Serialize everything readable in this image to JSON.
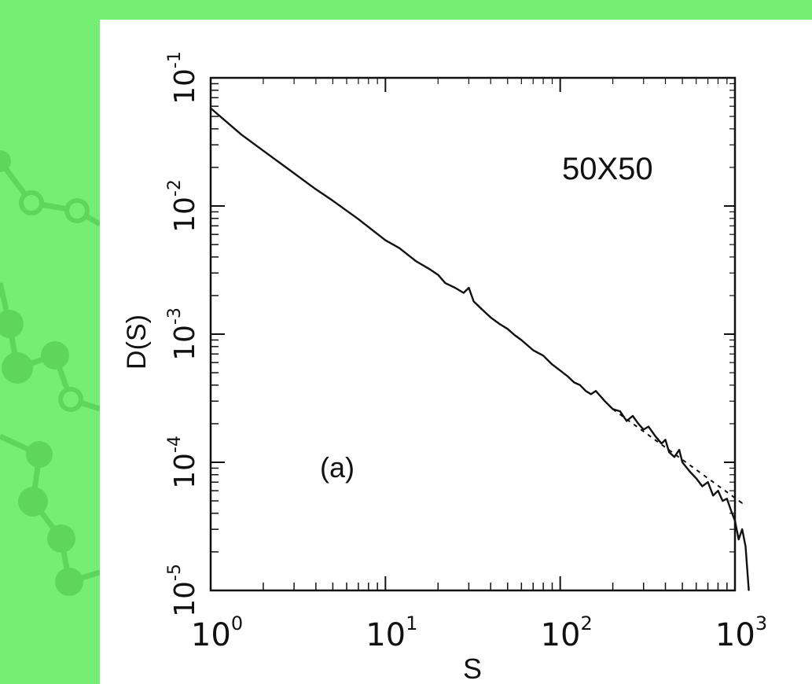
{
  "theme": {
    "background": "#74ee74",
    "molecule_fill": "#5ed65e",
    "panel": "#ffffff",
    "ink": "#111111"
  },
  "chart_data": {
    "type": "line",
    "title": "",
    "xlabel": "S",
    "ylabel": "D(S)",
    "xscale": "log",
    "yscale": "log",
    "xlim": [
      1,
      1000
    ],
    "ylim": [
      1e-05,
      0.1
    ],
    "x_ticks": [
      {
        "base": "10",
        "exp": "0"
      },
      {
        "base": "10",
        "exp": "1"
      },
      {
        "base": "10",
        "exp": "2"
      },
      {
        "base": "10",
        "exp": "3"
      }
    ],
    "y_ticks": [
      {
        "base": "10",
        "exp": "-5"
      },
      {
        "base": "10",
        "exp": "-4"
      },
      {
        "base": "10",
        "exp": "-3"
      },
      {
        "base": "10",
        "exp": "-2"
      },
      {
        "base": "10",
        "exp": "-1"
      }
    ],
    "grid": false,
    "annotations": [
      "50X50",
      "(a)"
    ],
    "series": [
      {
        "style": "solid",
        "x": [
          1,
          1.5,
          2,
          3,
          4,
          5,
          7,
          10,
          12,
          15,
          18,
          20,
          22,
          25,
          28,
          30,
          32,
          35,
          40,
          45,
          50,
          55,
          60,
          70,
          80,
          90,
          100,
          110,
          120,
          130,
          140,
          150,
          160,
          180,
          200,
          220,
          240,
          260,
          280,
          300,
          320,
          350,
          380,
          400,
          420,
          450,
          480,
          500,
          550,
          600,
          650,
          700,
          750,
          800,
          850,
          900,
          950,
          1000,
          1050,
          1100,
          1150,
          1200
        ],
        "y": [
          0.058,
          0.036,
          0.027,
          0.018,
          0.0135,
          0.011,
          0.0079,
          0.0054,
          0.0047,
          0.0037,
          0.0032,
          0.0029,
          0.0025,
          0.0023,
          0.0021,
          0.0023,
          0.0018,
          0.0016,
          0.00135,
          0.0012,
          0.0011,
          0.00098,
          0.0009,
          0.00075,
          0.00068,
          0.00058,
          0.00052,
          0.00047,
          0.00042,
          0.0004,
          0.00036,
          0.00034,
          0.00036,
          0.0003,
          0.00026,
          0.00025,
          0.00021,
          0.00023,
          0.0002,
          0.00018,
          0.00019,
          0.00016,
          0.00014,
          0.00015,
          0.00012,
          0.00011,
          0.000125,
          0.0001,
          8.5e-05,
          7.5e-05,
          6.5e-05,
          7e-05,
          5.5e-05,
          6e-05,
          5e-05,
          5.2e-05,
          4.2e-05,
          3.5e-05,
          2.5e-05,
          3e-05,
          2.2e-05,
          1e-05
        ]
      },
      {
        "style": "dashed",
        "x": [
          200,
          1100
        ],
        "y": [
          0.00026,
          4.8e-05
        ]
      }
    ]
  }
}
